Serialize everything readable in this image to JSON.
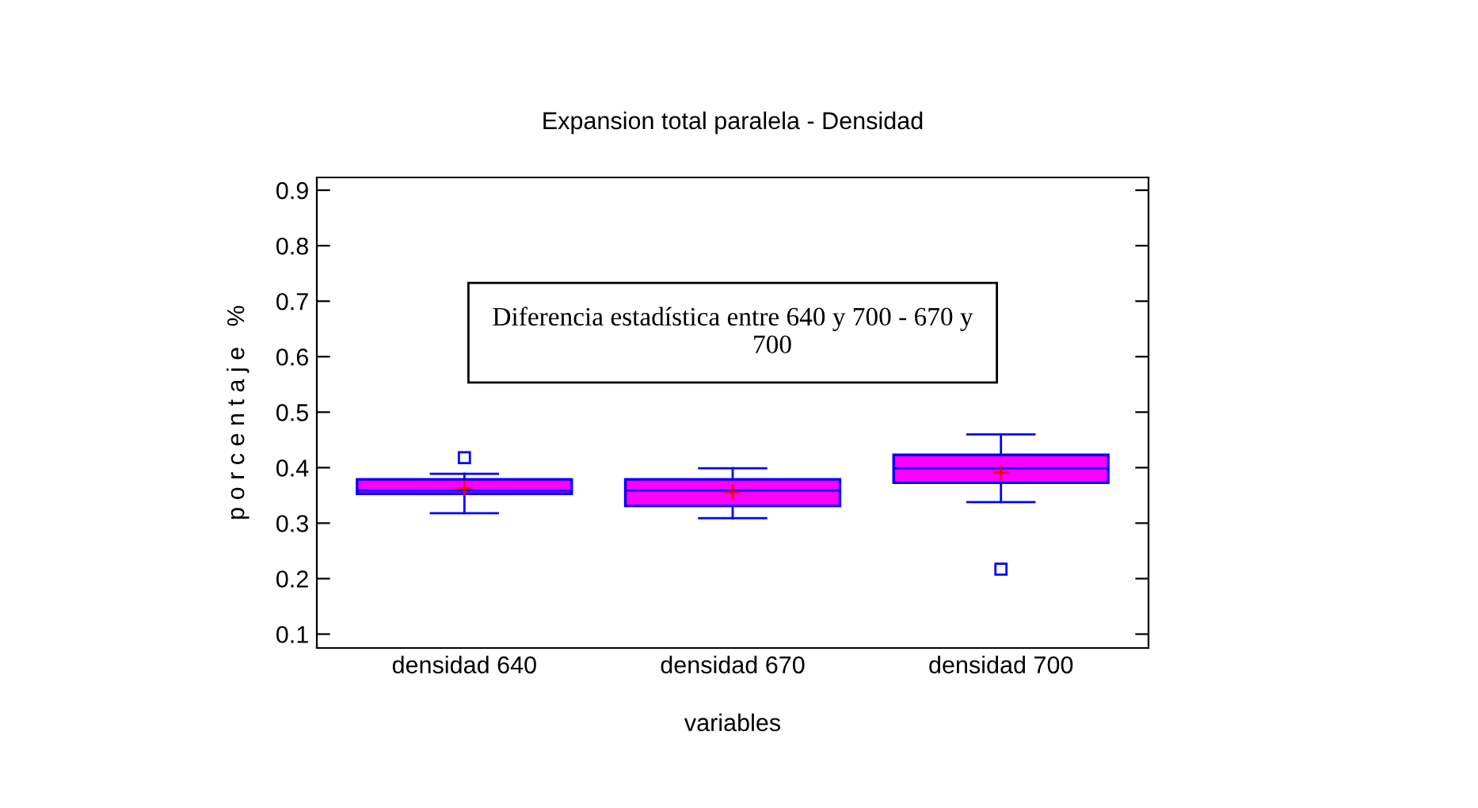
{
  "chart_data": {
    "type": "box",
    "title": "Expansion total paralela - Densidad",
    "xlabel": "variables",
    "ylabel": "p o r c e n t a j e   %",
    "categories": [
      "densidad 640",
      "densidad 670",
      "densidad 700"
    ],
    "boxes": [
      {
        "low": 0.318,
        "q1": 0.353,
        "median": 0.359,
        "q3": 0.379,
        "high": 0.389,
        "mean": 0.363,
        "outliers": [
          0.418
        ]
      },
      {
        "low": 0.309,
        "q1": 0.331,
        "median": 0.359,
        "q3": 0.379,
        "high": 0.399,
        "mean": 0.356
      },
      {
        "low": 0.338,
        "q1": 0.373,
        "median": 0.399,
        "q3": 0.423,
        "high": 0.46,
        "mean": 0.391,
        "outliers": [
          0.217
        ]
      }
    ],
    "color": "#ff00ff",
    "ylim": [
      0.075,
      0.923
    ],
    "yticks": [
      0.1,
      0.2,
      0.3,
      0.4,
      0.5,
      0.6,
      0.7,
      0.8,
      0.9
    ],
    "grid": false,
    "annotations": [
      "Diferencia estadística entre 640 y 700 - 670 y\n            700"
    ]
  }
}
